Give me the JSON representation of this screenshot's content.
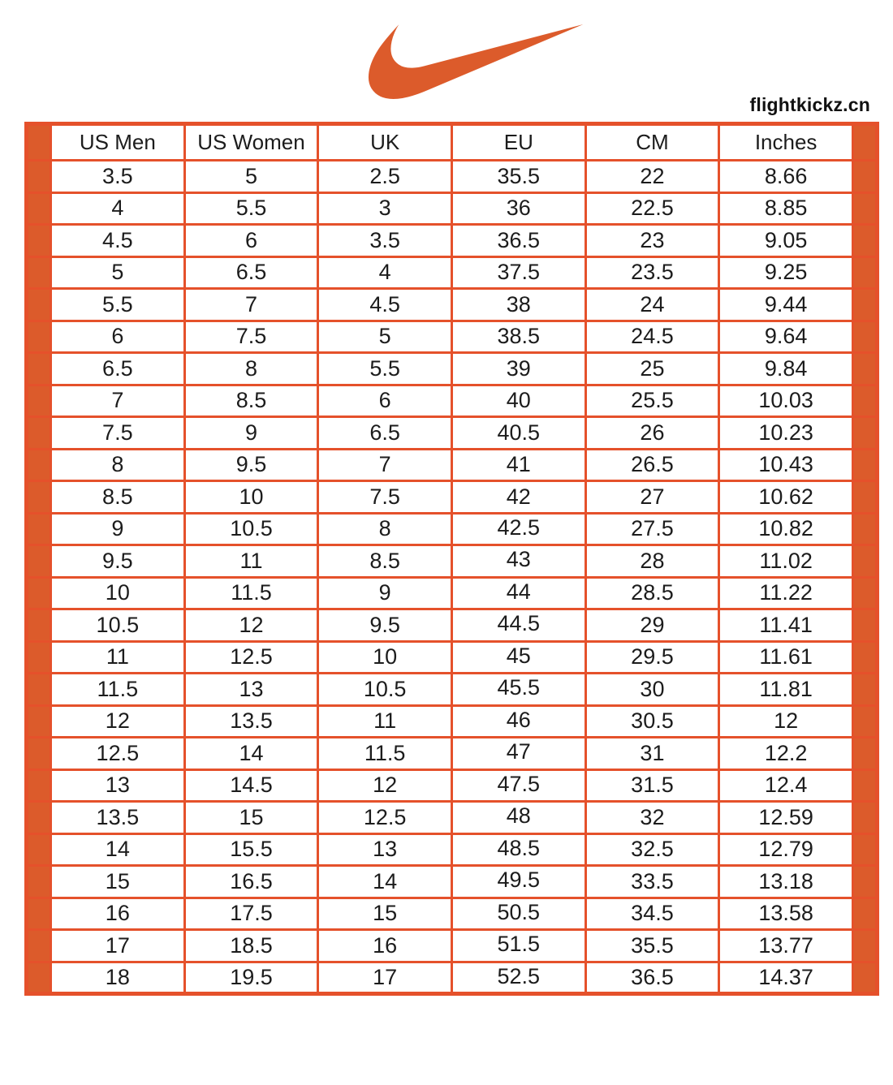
{
  "brand": {
    "logo_icon": "nike-swoosh-icon",
    "website": "flightkickz.cn"
  },
  "colors": {
    "accent_orange": "#DC5B2B",
    "grid_orange": "#E5512B",
    "text": "#1C1C1C",
    "background": "#FFFFFF"
  },
  "table": {
    "headers": [
      "US Men",
      "US Women",
      "UK",
      "EU",
      "CM",
      "Inches"
    ],
    "rows": [
      [
        "3.5",
        "5",
        "2.5",
        "35.5",
        "22",
        "8.66"
      ],
      [
        "4",
        "5.5",
        "3",
        "36",
        "22.5",
        "8.85"
      ],
      [
        "4.5",
        "6",
        "3.5",
        "36.5",
        "23",
        "9.05"
      ],
      [
        "5",
        "6.5",
        "4",
        "37.5",
        "23.5",
        "9.25"
      ],
      [
        "5.5",
        "7",
        "4.5",
        "38",
        "24",
        "9.44"
      ],
      [
        "6",
        "7.5",
        "5",
        "38.5",
        "24.5",
        "9.64"
      ],
      [
        "6.5",
        "8",
        "5.5",
        "39",
        "25",
        "9.84"
      ],
      [
        "7",
        "8.5",
        "6",
        "40",
        "25.5",
        "10.03"
      ],
      [
        "7.5",
        "9",
        "6.5",
        "40.5",
        "26",
        "10.23"
      ],
      [
        "8",
        "9.5",
        "7",
        "41",
        "26.5",
        "10.43"
      ],
      [
        "8.5",
        "10",
        "7.5",
        "42",
        "27",
        "10.62"
      ],
      [
        "9",
        "10.5",
        "8",
        "42.5",
        "27.5",
        "10.82"
      ],
      [
        "9.5",
        "11",
        "8.5",
        "43",
        "28",
        "11.02"
      ],
      [
        "10",
        "11.5",
        "9",
        "44",
        "28.5",
        "11.22"
      ],
      [
        "10.5",
        "12",
        "9.5",
        "44.5",
        "29",
        "11.41"
      ],
      [
        "11",
        "12.5",
        "10",
        "45",
        "29.5",
        "11.61"
      ],
      [
        "11.5",
        "13",
        "10.5",
        "45.5",
        "30",
        "11.81"
      ],
      [
        "12",
        "13.5",
        "11",
        "46",
        "30.5",
        "12"
      ],
      [
        "12.5",
        "14",
        "11.5",
        "47",
        "31",
        "12.2"
      ],
      [
        "13",
        "14.5",
        "12",
        "47.5",
        "31.5",
        "12.4"
      ],
      [
        "13.5",
        "15",
        "12.5",
        "48",
        "32",
        "12.59"
      ],
      [
        "14",
        "15.5",
        "13",
        "48.5",
        "32.5",
        "12.79"
      ],
      [
        "15",
        "16.5",
        "14",
        "49.5",
        "33.5",
        "13.18"
      ],
      [
        "16",
        "17.5",
        "15",
        "50.5",
        "34.5",
        "13.58"
      ],
      [
        "17",
        "18.5",
        "16",
        "51.5",
        "35.5",
        "13.77"
      ],
      [
        "18",
        "19.5",
        "17",
        "52.5",
        "36.5",
        "14.37"
      ]
    ]
  }
}
